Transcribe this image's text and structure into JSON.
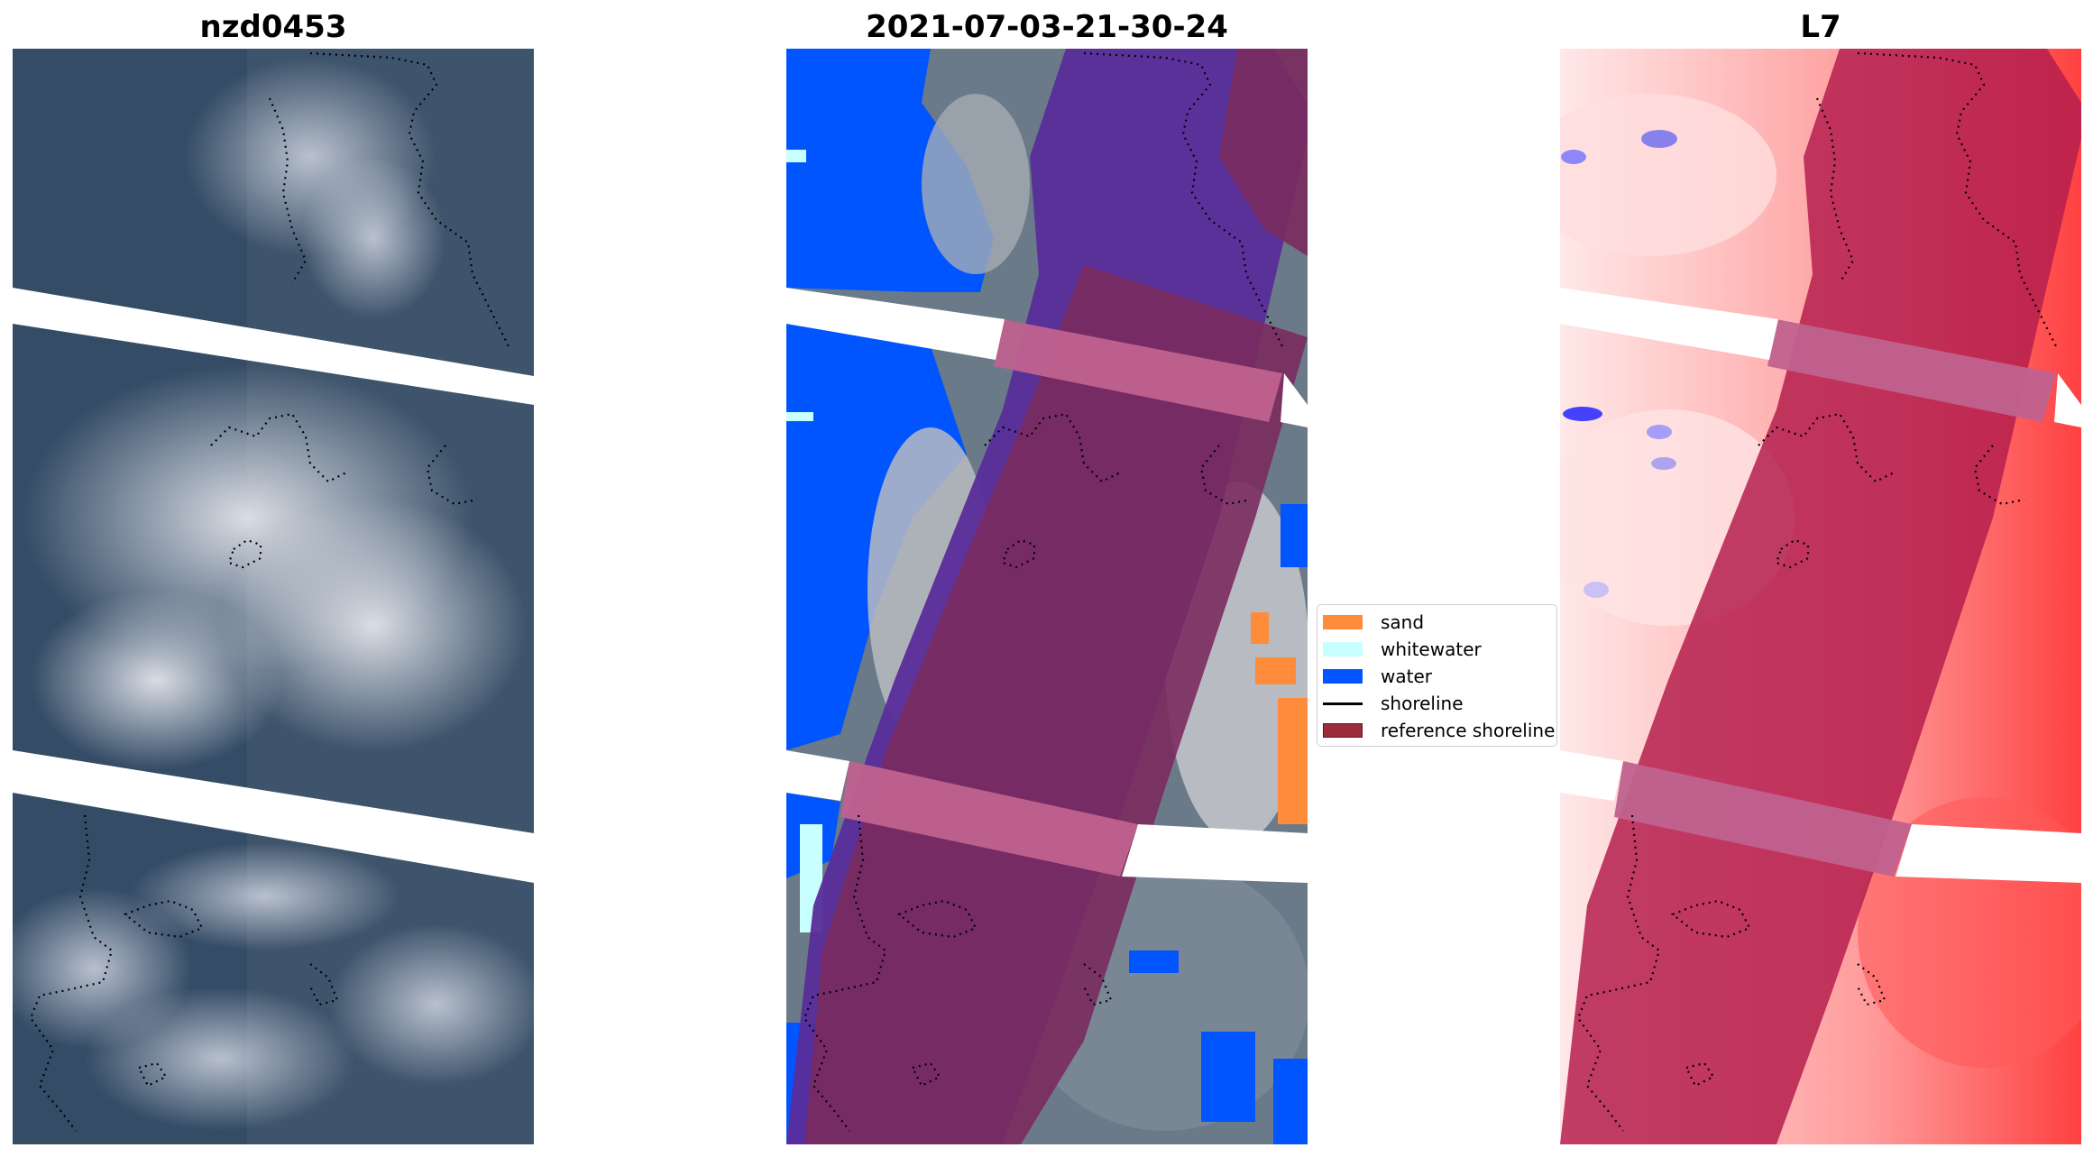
{
  "panels": [
    {
      "title": "nzd0453"
    },
    {
      "title": "2021-07-03-21-30-24"
    },
    {
      "title": "L7"
    }
  ],
  "legend": {
    "placement": "center",
    "items": [
      {
        "label": "sand",
        "kind": "patch",
        "color": "#ff8c3a"
      },
      {
        "label": "whitewater",
        "kind": "patch",
        "color": "#c8ffff"
      },
      {
        "label": "water",
        "kind": "patch",
        "color": "#0055ff"
      },
      {
        "label": "shoreline",
        "kind": "line",
        "color": "#000000"
      },
      {
        "label": "reference shoreline",
        "kind": "patch",
        "color": "#9b2c3b"
      }
    ]
  },
  "colors": {
    "water_blue": "#0055ff",
    "sand_orange": "#ff8c3a",
    "whitewater": "#c8ffff",
    "overlay_purple": "#5a2d9a",
    "overlay_maroon": "#7a2b5f",
    "overlay_pink": "#c0628f",
    "index_red": "#ff3333",
    "index_light": "#ffe6e6"
  }
}
